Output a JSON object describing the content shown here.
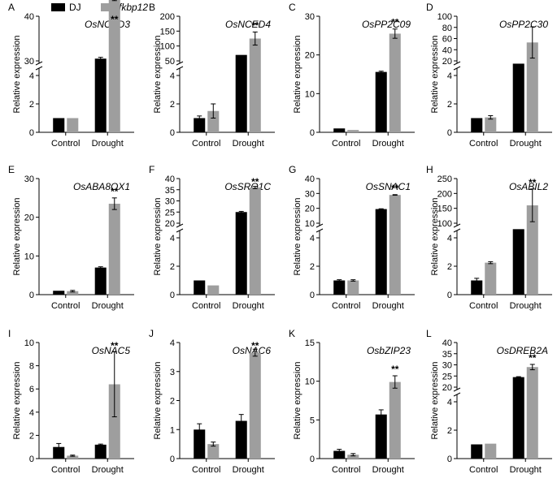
{
  "legend": [
    {
      "label": "DJ",
      "color": "#000000"
    },
    {
      "label": "fkbp12",
      "color": "#9e9e9e"
    }
  ],
  "colors": {
    "DJ": "#000000",
    "fkbp12": "#9e9e9e"
  },
  "chart_data": [
    {
      "letter": "A",
      "type": "bar",
      "title": "OsNCED3",
      "ylabel": "Relative expression",
      "categories": [
        "Control",
        "Drought"
      ],
      "broken_axis": true,
      "lower_ticks": [
        0,
        2,
        4
      ],
      "upper_ticks": [
        30,
        40
      ],
      "series": [
        {
          "name": "DJ",
          "values": [
            1,
            30.5
          ],
          "errors": [
            0,
            0.3
          ]
        },
        {
          "name": "fkbp12",
          "values": [
            1,
            45
          ],
          "errors": [
            0,
            1.5
          ]
        }
      ],
      "significance": [
        "",
        "**"
      ]
    },
    {
      "letter": "B",
      "type": "bar",
      "title": "OsNCED4",
      "ylabel": "Relative expression",
      "categories": [
        "Control",
        "Drought"
      ],
      "broken_axis": true,
      "lower_ticks": [
        0,
        2,
        4
      ],
      "upper_ticks": [
        50,
        100,
        150,
        200
      ],
      "series": [
        {
          "name": "DJ",
          "values": [
            1,
            70
          ],
          "errors": [
            0.15,
            0
          ]
        },
        {
          "name": "fkbp12",
          "values": [
            1.5,
            125
          ],
          "errors": [
            0.5,
            22
          ]
        }
      ],
      "significance": [
        "",
        "**"
      ]
    },
    {
      "letter": "C",
      "type": "bar",
      "title": "OsPP2C09",
      "ylabel": "Relative expression",
      "categories": [
        "Control",
        "Drought"
      ],
      "broken_axis": false,
      "ticks": [
        0,
        10,
        20,
        30
      ],
      "series": [
        {
          "name": "DJ",
          "values": [
            1,
            15.6
          ],
          "errors": [
            0,
            0.2
          ]
        },
        {
          "name": "fkbp12",
          "values": [
            0.6,
            25.5
          ],
          "errors": [
            0,
            1.2
          ]
        }
      ],
      "significance": [
        "",
        "**"
      ]
    },
    {
      "letter": "D",
      "type": "bar",
      "title": "OsPP2C30",
      "ylabel": "Relative expression",
      "categories": [
        "Control",
        "Drought"
      ],
      "broken_axis": true,
      "lower_ticks": [
        0,
        2,
        4
      ],
      "upper_ticks": [
        20,
        40,
        60,
        80,
        100
      ],
      "series": [
        {
          "name": "DJ",
          "values": [
            1,
            15
          ],
          "errors": [
            0,
            0
          ]
        },
        {
          "name": "fkbp12",
          "values": [
            1.05,
            53
          ],
          "errors": [
            0.12,
            28
          ]
        }
      ],
      "significance": [
        "",
        ""
      ]
    },
    {
      "letter": "E",
      "type": "bar",
      "title": "OsABA8OX1",
      "ylabel": "Relative expression",
      "categories": [
        "Control",
        "Drought"
      ],
      "broken_axis": false,
      "ticks": [
        0,
        10,
        20,
        30
      ],
      "series": [
        {
          "name": "DJ",
          "values": [
            1,
            7
          ],
          "errors": [
            0,
            0.2
          ]
        },
        {
          "name": "fkbp12",
          "values": [
            0.9,
            23.5
          ],
          "errors": [
            0.2,
            1.5
          ]
        }
      ],
      "significance": [
        "",
        "**"
      ]
    },
    {
      "letter": "F",
      "type": "bar",
      "title": "OsSRO1C",
      "ylabel": "Relative expression",
      "categories": [
        "Control",
        "Drought"
      ],
      "broken_axis": true,
      "lower_ticks": [
        0,
        2,
        4
      ],
      "upper_ticks": [
        20,
        25,
        30,
        35,
        40
      ],
      "series": [
        {
          "name": "DJ",
          "values": [
            1,
            25
          ],
          "errors": [
            0,
            0.3
          ]
        },
        {
          "name": "fkbp12",
          "values": [
            0.65,
            36
          ],
          "errors": [
            0,
            0.5
          ]
        }
      ],
      "significance": [
        "",
        "**"
      ]
    },
    {
      "letter": "G",
      "type": "bar",
      "title": "OsSNAC1",
      "ylabel": "Relative expression",
      "categories": [
        "Control",
        "Drought"
      ],
      "broken_axis": true,
      "lower_ticks": [
        0,
        2,
        4
      ],
      "upper_ticks": [
        10,
        20,
        30,
        40
      ],
      "series": [
        {
          "name": "DJ",
          "values": [
            1,
            19.5
          ],
          "errors": [
            0.05,
            0.2
          ]
        },
        {
          "name": "fkbp12",
          "values": [
            1,
            29
          ],
          "errors": [
            0.05,
            0.2
          ]
        }
      ],
      "significance": [
        "",
        "**"
      ]
    },
    {
      "letter": "H",
      "type": "bar",
      "title": "OsABIL2",
      "ylabel": "Relative expression",
      "categories": [
        "Control",
        "Drought"
      ],
      "broken_axis": true,
      "lower_ticks": [
        0,
        2,
        4
      ],
      "upper_ticks": [
        100,
        150,
        200,
        250
      ],
      "series": [
        {
          "name": "DJ",
          "values": [
            1,
            80
          ],
          "errors": [
            0.15,
            0
          ]
        },
        {
          "name": "fkbp12",
          "values": [
            2.25,
            160
          ],
          "errors": [
            0.07,
            55
          ]
        }
      ],
      "significance": [
        "",
        "**"
      ]
    },
    {
      "letter": "I",
      "type": "bar",
      "title": "OsNAC5",
      "ylabel": "Relative expression",
      "categories": [
        "Control",
        "Drought"
      ],
      "broken_axis": false,
      "ticks": [
        0,
        2,
        4,
        6,
        8,
        10
      ],
      "series": [
        {
          "name": "DJ",
          "values": [
            1,
            1.2
          ],
          "errors": [
            0.3,
            0.05
          ]
        },
        {
          "name": "fkbp12",
          "values": [
            0.25,
            6.4
          ],
          "errors": [
            0.05,
            2.8
          ]
        }
      ],
      "significance": [
        "",
        "**"
      ]
    },
    {
      "letter": "J",
      "type": "bar",
      "title": "OsNAC6",
      "ylabel": "Relative expression",
      "categories": [
        "Control",
        "Drought"
      ],
      "broken_axis": false,
      "ticks": [
        0,
        1,
        2,
        3,
        4
      ],
      "series": [
        {
          "name": "DJ",
          "values": [
            1,
            1.3
          ],
          "errors": [
            0.2,
            0.22
          ]
        },
        {
          "name": "fkbp12",
          "values": [
            0.5,
            3.65
          ],
          "errors": [
            0.07,
            0.12
          ]
        }
      ],
      "significance": [
        "",
        "**"
      ]
    },
    {
      "letter": "K",
      "type": "bar",
      "title": "OsbZIP23",
      "ylabel": "Relative expression",
      "categories": [
        "Control",
        "Drought"
      ],
      "broken_axis": false,
      "ticks": [
        0,
        5,
        10,
        15
      ],
      "series": [
        {
          "name": "DJ",
          "values": [
            1,
            5.7
          ],
          "errors": [
            0.2,
            0.6
          ]
        },
        {
          "name": "fkbp12",
          "values": [
            0.5,
            9.9
          ],
          "errors": [
            0.15,
            0.8
          ]
        }
      ],
      "significance": [
        "",
        "**"
      ]
    },
    {
      "letter": "L",
      "type": "bar",
      "title": "OsDREB2A",
      "ylabel": "Relative expression",
      "categories": [
        "Control",
        "Drought"
      ],
      "broken_axis": true,
      "lower_ticks": [
        0,
        2,
        4
      ],
      "upper_ticks": [
        20,
        25,
        30,
        35,
        40
      ],
      "series": [
        {
          "name": "DJ",
          "values": [
            1,
            24.5
          ],
          "errors": [
            0,
            0.2
          ]
        },
        {
          "name": "fkbp12",
          "values": [
            1.05,
            29
          ],
          "errors": [
            0,
            1.2
          ]
        }
      ],
      "significance": [
        "",
        "**"
      ]
    }
  ]
}
